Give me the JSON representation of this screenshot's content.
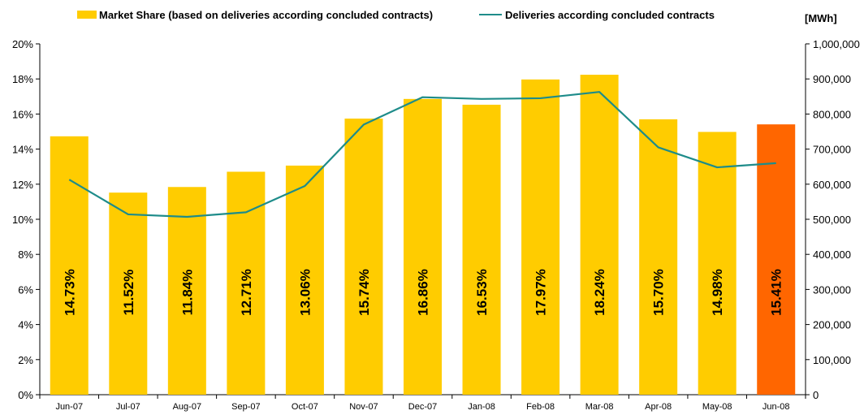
{
  "chart_data": {
    "type": "bar",
    "categories": [
      "Jun-07",
      "Jul-07",
      "Aug-07",
      "Sep-07",
      "Oct-07",
      "Nov-07",
      "Dec-07",
      "Jan-08",
      "Feb-08",
      "Mar-08",
      "Apr-08",
      "May-08",
      "Jun-08"
    ],
    "series": [
      {
        "name": "Market Share (based on deliveries according concluded contracts)",
        "type": "bar",
        "axis": "left",
        "values": [
          14.73,
          11.52,
          11.84,
          12.71,
          13.06,
          15.74,
          16.86,
          16.53,
          17.97,
          18.24,
          15.7,
          14.98,
          15.41
        ],
        "labels": [
          "14.73%",
          "11.52%",
          "11.84%",
          "12.71%",
          "13.06%",
          "15.74%",
          "16.86%",
          "16.53%",
          "17.97%",
          "18.24%",
          "15.70%",
          "14.98%",
          "15.41%"
        ],
        "color": "#FFCC00",
        "highlight_last_color": "#FF6600"
      },
      {
        "name": "Deliveries according concluded contracts",
        "type": "line",
        "axis": "right",
        "values": [
          613000,
          514000,
          507000,
          520000,
          595000,
          770000,
          848000,
          843000,
          845000,
          863000,
          705000,
          648000,
          660000
        ],
        "color": "#1E8C8A"
      }
    ],
    "y_left": {
      "ylim": [
        0,
        20
      ],
      "ticks": [
        0,
        2,
        4,
        6,
        8,
        10,
        12,
        14,
        16,
        18,
        20
      ],
      "tick_labels": [
        "0%",
        "2%",
        "4%",
        "6%",
        "8%",
        "10%",
        "12%",
        "14%",
        "16%",
        "18%",
        "20%"
      ]
    },
    "y_right": {
      "ylim": [
        0,
        1000000
      ],
      "ticks": [
        0,
        100000,
        200000,
        300000,
        400000,
        500000,
        600000,
        700000,
        800000,
        900000,
        1000000
      ],
      "tick_labels": [
        "0",
        "100,000",
        "200,000",
        "300,000",
        "400,000",
        "500,000",
        "600,000",
        "700,000",
        "800,000",
        "900,000",
        "1,000,000"
      ],
      "unit_label": "[MWh]"
    },
    "grid": false,
    "legend_position": "top"
  }
}
